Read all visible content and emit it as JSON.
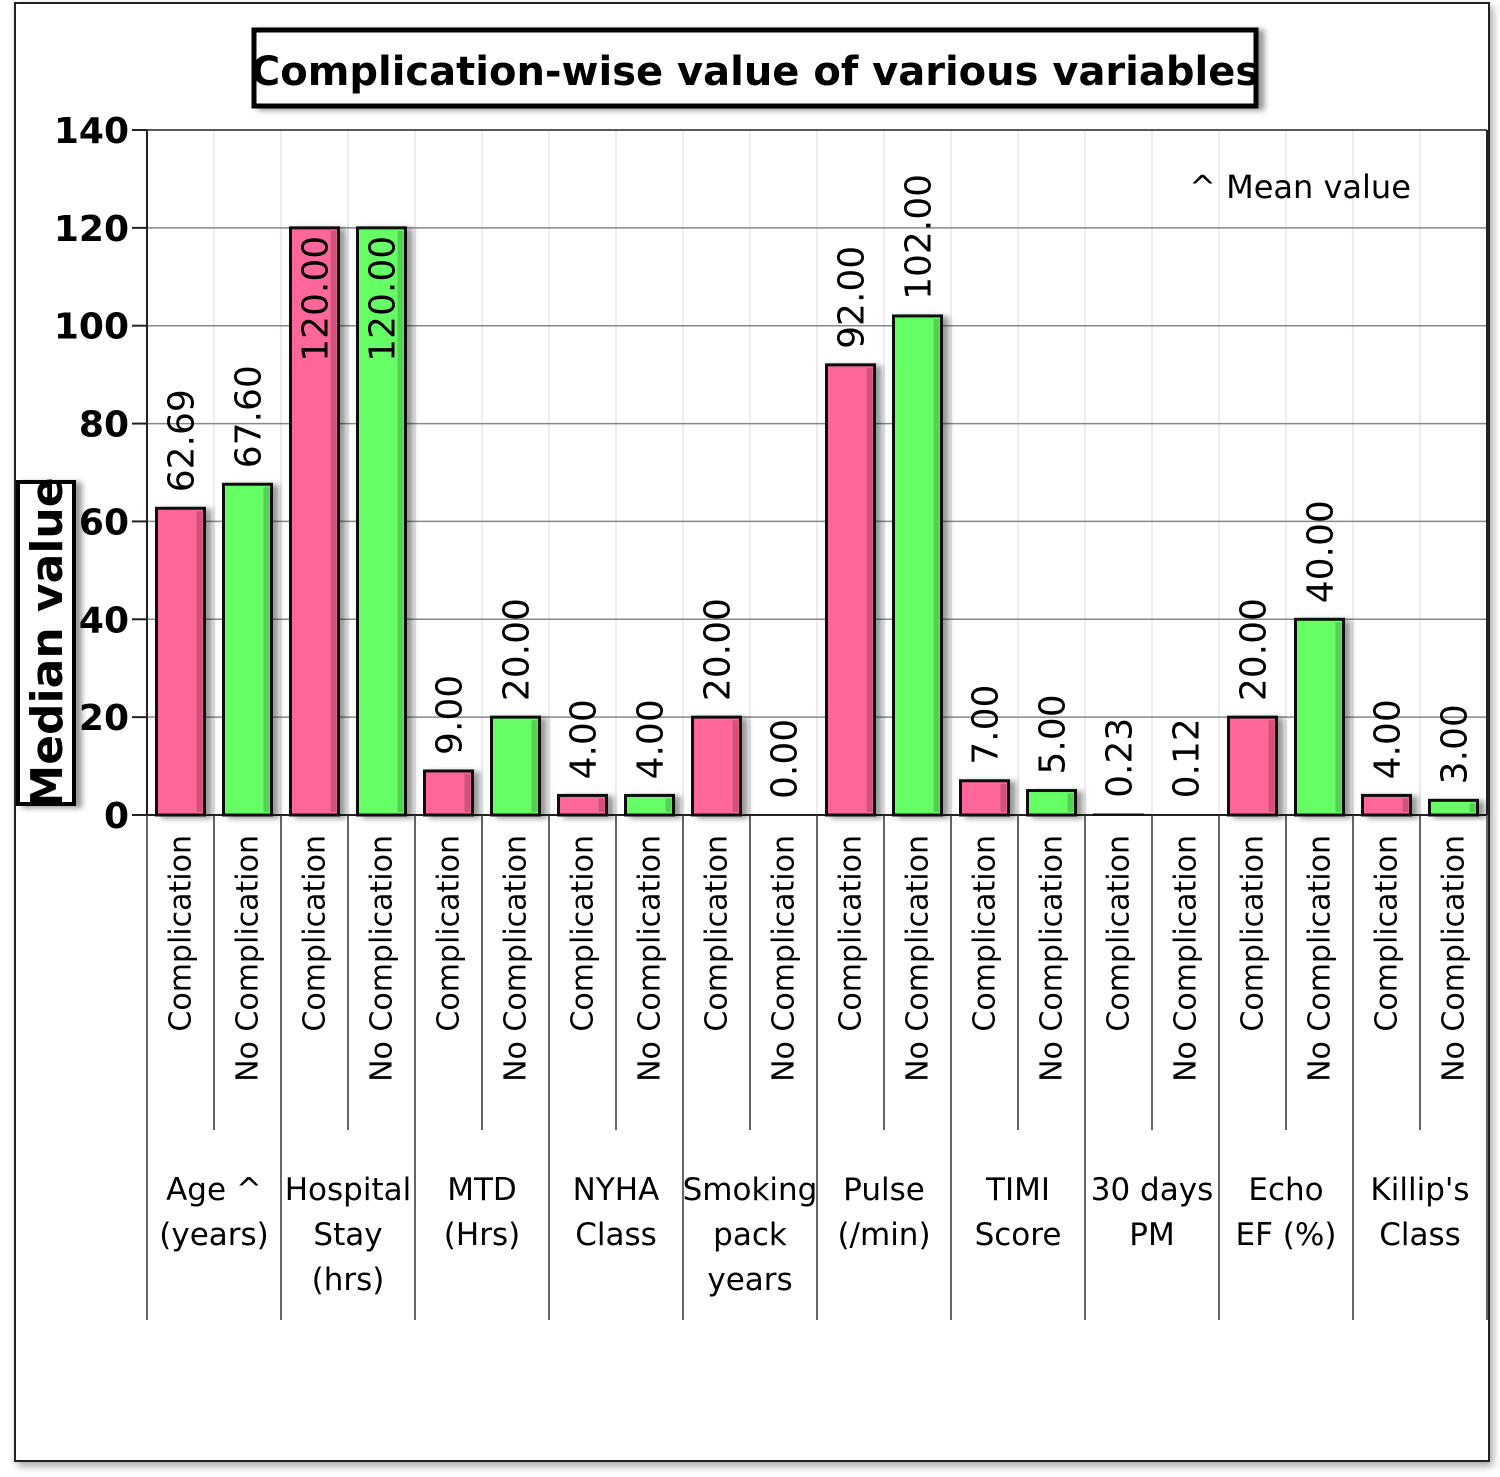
{
  "chart_data": {
    "type": "bar",
    "title": "Complication-wise value of various variables",
    "ylabel": "Median value",
    "xlabel": "",
    "ylim": [
      0,
      140
    ],
    "yticks": [
      0,
      20,
      40,
      60,
      80,
      100,
      120,
      140
    ],
    "grid": true,
    "annotation": "^ Mean value",
    "colors": {
      "Complication": "#ff6699",
      "No Complication": "#66ff66"
    },
    "groups": [
      {
        "label": [
          "Age ^",
          "(years)"
        ],
        "bars": [
          {
            "sub": "Complication",
            "value": 62.69,
            "label": "62.69"
          },
          {
            "sub": "No Complication",
            "value": 67.6,
            "label": "67.60"
          }
        ]
      },
      {
        "label": [
          "Hospital",
          "Stay",
          "(hrs)"
        ],
        "bars": [
          {
            "sub": "Complication",
            "value": 120.0,
            "label": "120.00"
          },
          {
            "sub": "No Complication",
            "value": 120.0,
            "label": "120.00"
          }
        ]
      },
      {
        "label": [
          "MTD",
          "(Hrs)"
        ],
        "bars": [
          {
            "sub": "Complication",
            "value": 9.0,
            "label": "9.00"
          },
          {
            "sub": "No Complication",
            "value": 20.0,
            "label": "20.00"
          }
        ]
      },
      {
        "label": [
          "NYHA",
          "Class"
        ],
        "bars": [
          {
            "sub": "Complication",
            "value": 4.0,
            "label": "4.00"
          },
          {
            "sub": "No Complication",
            "value": 4.0,
            "label": "4.00"
          }
        ]
      },
      {
        "label": [
          "Smoking",
          "pack",
          "years"
        ],
        "bars": [
          {
            "sub": "Complication",
            "value": 20.0,
            "label": "20.00"
          },
          {
            "sub": "No Complication",
            "value": 0.0,
            "label": "0.00"
          }
        ]
      },
      {
        "label": [
          "Pulse",
          "(/min)"
        ],
        "bars": [
          {
            "sub": "Complication",
            "value": 92.0,
            "label": "92.00"
          },
          {
            "sub": "No Complication",
            "value": 102.0,
            "label": "102.00"
          }
        ]
      },
      {
        "label": [
          "TIMI",
          "Score"
        ],
        "bars": [
          {
            "sub": "Complication",
            "value": 7.0,
            "label": "7.00"
          },
          {
            "sub": "No Complication",
            "value": 5.0,
            "label": "5.00"
          }
        ]
      },
      {
        "label": [
          "30 days",
          "PM"
        ],
        "bars": [
          {
            "sub": "Complication",
            "value": 0.23,
            "label": "0.23"
          },
          {
            "sub": "No Complication",
            "value": 0.12,
            "label": "0.12"
          }
        ]
      },
      {
        "label": [
          "Echo",
          "EF (%)"
        ],
        "bars": [
          {
            "sub": "Complication",
            "value": 20.0,
            "label": "20.00"
          },
          {
            "sub": "No Complication",
            "value": 40.0,
            "label": "40.00"
          }
        ]
      },
      {
        "label": [
          "Killip's",
          "Class"
        ],
        "bars": [
          {
            "sub": "Complication",
            "value": 4.0,
            "label": "4.00"
          },
          {
            "sub": "No Complication",
            "value": 3.0,
            "label": "3.00"
          }
        ]
      }
    ]
  }
}
